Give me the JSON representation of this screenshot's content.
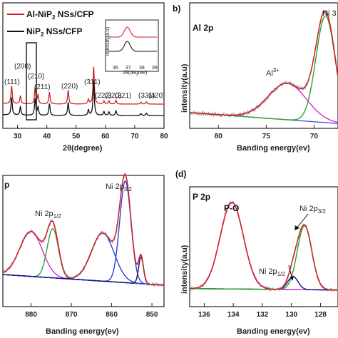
{
  "panels": {
    "a": {
      "legend": [
        "Al-NiP",
        "2",
        " NSs/CFP",
        "NiP",
        "2",
        " NSs/CFP"
      ],
      "xlabel": "2θ(degree)",
      "xticks": [
        "30",
        "40",
        "50",
        "60",
        "70",
        "80"
      ],
      "hkl": [
        "(111)",
        "(200)",
        "(210)",
        "(211)",
        "(220)",
        "(311)",
        "(222)",
        "(320)",
        "(321)",
        "(331)",
        "(420)"
      ],
      "inset": {
        "ylabel": "intensity(a.u)",
        "xlabel": "2θ(degree)",
        "xticks": [
          "36",
          "37",
          "38",
          "39"
        ]
      }
    },
    "b": {
      "label": "b)",
      "title": "Al 2p",
      "xlabel": "Banding energy(ev)",
      "ylabel": "intensity(a.u)",
      "xticks": [
        "80",
        "75",
        "70"
      ],
      "ann_al": "Al",
      "ann_al_sup": "3+",
      "ann_ni": "Ni 3"
    },
    "c": {
      "title": "p",
      "xlabel": "Banding energy(ev)",
      "xticks": [
        "880",
        "870",
        "860",
        "850"
      ],
      "ann1": "Ni 2p",
      "ann1_sub": "1/2",
      "ann2": "Ni 2p",
      "ann2_sub": "3/2"
    },
    "d": {
      "label": "(d)",
      "title": "P 2p",
      "xlabel": "Banding energy(ev)",
      "ylabel": "intensity(a.u)",
      "xticks": [
        "136",
        "134",
        "132",
        "130",
        "128"
      ],
      "ann_po": "P-O",
      "ann1": "Ni 2p",
      "ann1_sub": "1/2",
      "ann2": "Ni 2p",
      "ann2_sub": "3/2"
    }
  },
  "colors": {
    "red": "#d11f25",
    "black": "#111111",
    "green": "#2ca02c",
    "blue": "#2b3fd8",
    "magenta": "#d62ad6",
    "navy": "#12127a",
    "gray": "#a8a8a8"
  },
  "chart_data": [
    {
      "type": "line",
      "xlim": [
        25,
        80
      ],
      "xlabel": "2θ(degree)",
      "series": [
        {
          "name": "Al-NiP2 NSs/CFP",
          "x": [
            28.0,
            31.0,
            36.0,
            37.0,
            40.9,
            47.3,
            54.2,
            56.0,
            59.5,
            61.2,
            63.6,
            72.1,
            74.0
          ],
          "peaks": [
            0.45,
            0.2,
            0.4,
            0.22,
            0.3,
            0.36,
            0.12,
            0.95,
            0.08,
            0.08,
            0.1,
            0.05,
            0.06
          ]
        },
        {
          "name": "NiP2 NSs/CFP",
          "x": [
            28.0,
            31.0,
            36.0,
            37.0,
            40.9,
            47.3,
            54.2,
            56.0,
            59.5,
            61.2,
            63.6,
            72.1,
            74.0
          ],
          "peaks": [
            0.45,
            0.22,
            0.42,
            0.2,
            0.3,
            0.34,
            0.14,
            0.9,
            0.1,
            0.09,
            0.12,
            0.05,
            0.06
          ]
        }
      ],
      "annotations": [
        "(111)",
        "(200)",
        "(210)",
        "(211)",
        "(220)",
        "(311)",
        "(222)",
        "(320)",
        "(321)",
        "(331)",
        "(420)"
      ]
    },
    {
      "type": "line",
      "title": "Al 2p",
      "xlim": [
        83,
        67.5
      ],
      "xlabel": "Banding energy(ev)",
      "ylabel": "intensity(a.u)",
      "components": [
        {
          "name": "Al3+",
          "center": 72.8,
          "width": 2.0,
          "height": 0.3
        },
        {
          "name": "Ni 3",
          "center": 68.8,
          "width": 1.0,
          "height": 0.88
        }
      ]
    },
    {
      "type": "line",
      "xlim": [
        887,
        847
      ],
      "xlabel": "Banding energy(ev)",
      "components": [
        {
          "name": "Ni 2p1/2 sat",
          "center": 880.0,
          "width": 2.8,
          "height": 0.42
        },
        {
          "name": "Ni 2p1/2",
          "center": 874.6,
          "width": 1.4,
          "height": 0.46
        },
        {
          "name": "Ni 2p3/2 sat",
          "center": 862.2,
          "width": 2.8,
          "height": 0.45
        },
        {
          "name": "Ni 2p3/2",
          "center": 856.6,
          "width": 1.4,
          "height": 0.95
        },
        {
          "name": "Ni-P",
          "center": 852.7,
          "width": 0.6,
          "height": 0.25
        }
      ]
    },
    {
      "type": "line",
      "title": "P 2p",
      "xlim": [
        137,
        126.8
      ],
      "xlabel": "Banding energy(ev)",
      "ylabel": "intensity(a.u)",
      "components": [
        {
          "name": "P-O",
          "center": 134.1,
          "width": 0.8,
          "height": 0.92
        },
        {
          "name": "Ni 2p1/2",
          "center": 129.9,
          "width": 0.35,
          "height": 0.14
        },
        {
          "name": "Ni 2p3/2",
          "center": 129.1,
          "width": 0.5,
          "height": 0.68
        }
      ]
    }
  ]
}
